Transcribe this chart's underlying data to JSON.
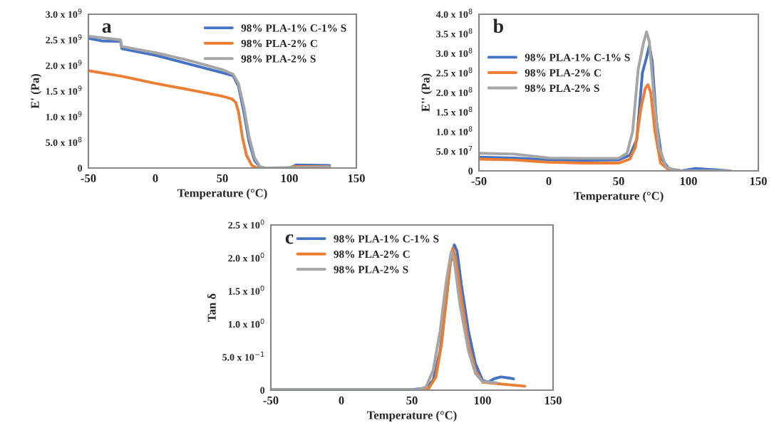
{
  "chart_data": [
    {
      "type": "line",
      "annotations": [
        "a"
      ],
      "xlabel": "Temperature (°C)",
      "ylabel": "E' (Pa)",
      "legend": "top right",
      "grid": false,
      "xlim": [
        -50,
        150
      ],
      "xticks": [
        -50,
        0,
        50,
        100,
        150
      ],
      "ylim": [
        0,
        3000000000.0
      ],
      "yticks": [
        0,
        {
          "value": 500000000.0,
          "label": "5.0 x 10$^{8}$"
        },
        {
          "value": 1000000000.0,
          "label": "1.0 x 10$^{9}$"
        },
        {
          "value": 1500000000.0,
          "label": "1.5 x 10$^{9}$"
        },
        {
          "value": 2000000000.0,
          "label": "2.0 x 10$^{9}$"
        },
        {
          "value": 2500000000.0,
          "label": "2.5 x 10$^{9}$"
        },
        {
          "value": 3000000000.0,
          "label": "3.0 x 10$^{9}$"
        }
      ],
      "series": [
        {
          "name": "98% PLA-1% C-1% S",
          "color": "#4472c4",
          "x": [
            -50,
            -40,
            -26,
            -25,
            0,
            25,
            50,
            58,
            62,
            66,
            70,
            74,
            78,
            82,
            100,
            105,
            130
          ],
          "values": [
            2530000000.0,
            2480000000.0,
            2470000000.0,
            2330000000.0,
            2200000000.0,
            2030000000.0,
            1860000000.0,
            1800000000.0,
            1600000000.0,
            1100000000.0,
            500000000.0,
            150000000.0,
            20000000.0,
            0,
            0,
            60000000.0,
            50000000.0
          ]
        },
        {
          "name": "98% PLA-2% C",
          "color": "#ed7d31",
          "x": [
            -50,
            -25,
            0,
            25,
            50,
            57,
            60,
            62,
            65,
            68,
            72,
            76,
            100,
            103,
            130
          ],
          "values": [
            1900000000.0,
            1790000000.0,
            1650000000.0,
            1530000000.0,
            1400000000.0,
            1350000000.0,
            1280000000.0,
            1100000000.0,
            600000000.0,
            250000000.0,
            50000000.0,
            0,
            0,
            30000000.0,
            30000000.0
          ]
        },
        {
          "name": "98% PLA-2% S",
          "color": "#a5a5a5",
          "x": [
            -50,
            -26,
            -25,
            0,
            25,
            50,
            58,
            62,
            66,
            70,
            74,
            78,
            82,
            130
          ],
          "values": [
            2570000000.0,
            2500000000.0,
            2370000000.0,
            2250000000.0,
            2100000000.0,
            1920000000.0,
            1830000000.0,
            1650000000.0,
            1200000000.0,
            600000000.0,
            200000000.0,
            30000000.0,
            0,
            20000000.0
          ]
        }
      ]
    },
    {
      "type": "line",
      "annotations": [
        "b"
      ],
      "xlabel": "Temperature (°C)",
      "ylabel": "E'' (Pa)",
      "legend": "left",
      "grid": false,
      "xlim": [
        -50,
        150
      ],
      "xticks": [
        -50,
        0,
        50,
        100,
        150
      ],
      "ylim": [
        0,
        400000000.0
      ],
      "yticks": [
        0,
        {
          "value": 50000000.0,
          "label": "5.0 x 10$^{7}$"
        },
        {
          "value": 100000000.0,
          "label": "1.0 x 10$^{8}$"
        },
        {
          "value": 150000000.0,
          "label": "1.5 x 10$^{8}$"
        },
        {
          "value": 200000000.0,
          "label": "2.0 x 10$^{8}$"
        },
        {
          "value": 250000000.0,
          "label": "2.5 x 10$^{8}$"
        },
        {
          "value": 300000000.0,
          "label": "3.0 x 10$^{8}$"
        },
        {
          "value": 350000000.0,
          "label": "3.5 x 10$^{8}$"
        },
        {
          "value": 400000000.0,
          "label": "4.0 x 10$^{8}$"
        }
      ],
      "series": [
        {
          "name": "98% PLA-1% C-1% S",
          "color": "#4472c4",
          "x": [
            -50,
            -25,
            0,
            25,
            50,
            58,
            63,
            67,
            70,
            72,
            74,
            77,
            81,
            86,
            95,
            105,
            130
          ],
          "values": [
            35000000.0,
            33000000.0,
            28000000.0,
            27000000.0,
            28000000.0,
            40000000.0,
            80000000.0,
            250000000.0,
            290000000.0,
            320000000.0,
            280000000.0,
            130000000.0,
            30000000.0,
            5000000.0,
            0,
            6000000.0,
            0
          ]
        },
        {
          "name": "98% PLA-2% C",
          "color": "#ed7d31",
          "x": [
            -50,
            -25,
            0,
            25,
            50,
            58,
            62,
            66,
            69,
            71,
            73,
            76,
            80,
            86,
            95,
            130
          ],
          "values": [
            30000000.0,
            28000000.0,
            22000000.0,
            20000000.0,
            20000000.0,
            30000000.0,
            60000000.0,
            160000000.0,
            210000000.0,
            220000000.0,
            200000000.0,
            100000000.0,
            20000000.0,
            2000000.0,
            0,
            0
          ]
        },
        {
          "name": "98% PLA-2% S",
          "color": "#a5a5a5",
          "x": [
            -50,
            -25,
            0,
            25,
            50,
            56,
            60,
            64,
            68,
            70,
            72,
            75,
            79,
            84,
            92,
            130
          ],
          "values": [
            45000000.0,
            43000000.0,
            33000000.0,
            32000000.0,
            32000000.0,
            45000000.0,
            100000000.0,
            260000000.0,
            330000000.0,
            355000000.0,
            330000000.0,
            200000000.0,
            60000000.0,
            10000000.0,
            0,
            0
          ]
        }
      ]
    },
    {
      "type": "line",
      "annotations": [
        "c"
      ],
      "xlabel": "Temperature (°C)",
      "ylabel": "Tan δ",
      "legend": "top left",
      "grid": false,
      "xlim": [
        -50,
        150
      ],
      "xticks": [
        -50,
        0,
        50,
        100,
        150
      ],
      "ylim": [
        0,
        2.5
      ],
      "yticks": [
        0,
        {
          "value": 0.5,
          "label": "5.0 x 10$^{−1}$"
        },
        {
          "value": 1.0,
          "label": "1.0 x 10$^{0}$"
        },
        {
          "value": 1.5,
          "label": "1.5 x 10$^{0}$"
        },
        {
          "value": 2.0,
          "label": "2.0 x 10$^{0}$"
        },
        {
          "value": 2.5,
          "label": "2.5 x 10$^{0}$"
        }
      ],
      "series": [
        {
          "name": "98% PLA-1% C-1% S",
          "color": "#4472c4",
          "x": [
            -50,
            50,
            60,
            65,
            70,
            74,
            77,
            80,
            82,
            85,
            90,
            95,
            100,
            104,
            108,
            113,
            120,
            122
          ],
          "values": [
            0.01,
            0.01,
            0.03,
            0.15,
            0.6,
            1.3,
            1.9,
            2.2,
            2.1,
            1.6,
            0.9,
            0.4,
            0.15,
            0.12,
            0.17,
            0.2,
            0.18,
            0.17
          ]
        },
        {
          "name": "98% PLA-2% C",
          "color": "#ed7d31",
          "x": [
            -50,
            55,
            62,
            67,
            71,
            75,
            78,
            79,
            81,
            85,
            90,
            95,
            100,
            110,
            120,
            130
          ],
          "values": [
            0,
            0,
            0.03,
            0.2,
            0.7,
            1.5,
            2.05,
            2.15,
            2.0,
            1.4,
            0.7,
            0.3,
            0.12,
            0.1,
            0.08,
            0.06
          ]
        },
        {
          "name": "98% PLA-2% S",
          "color": "#a5a5a5",
          "x": [
            -50,
            55,
            60,
            65,
            70,
            74,
            77,
            78,
            80,
            84,
            90,
            95,
            100,
            110
          ],
          "values": [
            0.01,
            0.01,
            0.05,
            0.3,
            0.9,
            1.6,
            2.0,
            2.1,
            1.95,
            1.3,
            0.6,
            0.25,
            0.13,
            0.11
          ]
        }
      ]
    }
  ]
}
